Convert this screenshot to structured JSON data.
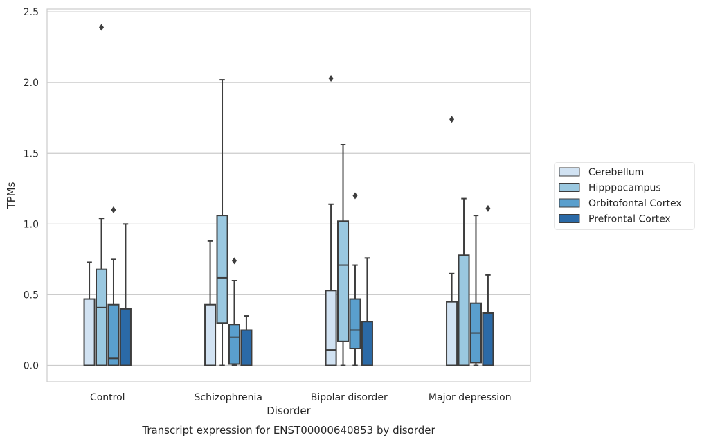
{
  "chart_data": {
    "type": "boxplot",
    "title": "Transcript expression for ENST00000640853 by disorder",
    "xlabel": "Disorder",
    "ylabel": "TPMs",
    "ylim": [
      -0.115,
      2.52
    ],
    "yticks": [
      "0.0",
      "0.5",
      "1.0",
      "1.5",
      "2.0",
      "2.5"
    ],
    "ytick_values": [
      0,
      0.5,
      1.0,
      1.5,
      2.0,
      2.5
    ],
    "grid": true,
    "legend_placement": "right",
    "categories": [
      "Control",
      "Schizophrenia",
      "Bipolar disorder",
      "Major depression"
    ],
    "series": [
      {
        "name": "Cerebellum",
        "color": "#d1e2f2",
        "boxes": [
          {
            "whislo": 0,
            "q1": 0,
            "med": 0,
            "q3": 0.47,
            "whishi": 0.73,
            "fliers": []
          },
          {
            "whislo": 0,
            "q1": 0,
            "med": 0,
            "q3": 0.43,
            "whishi": 0.88,
            "fliers": []
          },
          {
            "whislo": 0,
            "q1": 0,
            "med": 0.11,
            "q3": 0.53,
            "whishi": 1.14,
            "fliers": [
              2.03
            ]
          },
          {
            "whislo": 0,
            "q1": 0,
            "med": 0,
            "q3": 0.45,
            "whishi": 0.65,
            "fliers": [
              1.74
            ]
          }
        ]
      },
      {
        "name": "Hipppocampus",
        "color": "#9ac8e0",
        "boxes": [
          {
            "whislo": 0,
            "q1": 0,
            "med": 0.41,
            "q3": 0.68,
            "whishi": 1.04,
            "fliers": [
              2.39
            ]
          },
          {
            "whislo": 0,
            "q1": 0.3,
            "med": 0.62,
            "q3": 1.06,
            "whishi": 2.02,
            "fliers": []
          },
          {
            "whislo": 0,
            "q1": 0.17,
            "med": 0.71,
            "q3": 1.02,
            "whishi": 1.56,
            "fliers": []
          },
          {
            "whislo": 0,
            "q1": 0,
            "med": 0,
            "q3": 0.78,
            "whishi": 1.18,
            "fliers": []
          }
        ]
      },
      {
        "name": "Orbitofontal Cortex",
        "color": "#5a9fcd",
        "boxes": [
          {
            "whislo": 0,
            "q1": 0,
            "med": 0.05,
            "q3": 0.43,
            "whishi": 0.75,
            "fliers": [
              1.1
            ]
          },
          {
            "whislo": 0,
            "q1": 0.01,
            "med": 0.2,
            "q3": 0.29,
            "whishi": 0.6,
            "fliers": [
              0.74
            ]
          },
          {
            "whislo": 0,
            "q1": 0.12,
            "med": 0.25,
            "q3": 0.47,
            "whishi": 0.71,
            "fliers": [
              1.2
            ]
          },
          {
            "whislo": 0,
            "q1": 0.02,
            "med": 0.23,
            "q3": 0.44,
            "whishi": 1.06,
            "fliers": []
          }
        ]
      },
      {
        "name": "Prefrontal Cortex",
        "color": "#2b6aa7",
        "boxes": [
          {
            "whislo": 0,
            "q1": 0,
            "med": 0,
            "q3": 0.4,
            "whishi": 1.0,
            "fliers": []
          },
          {
            "whislo": 0,
            "q1": 0,
            "med": 0,
            "q3": 0.25,
            "whishi": 0.35,
            "fliers": []
          },
          {
            "whislo": 0,
            "q1": 0,
            "med": 0,
            "q3": 0.31,
            "whishi": 0.76,
            "fliers": []
          },
          {
            "whislo": 0,
            "q1": 0,
            "med": 0,
            "q3": 0.37,
            "whishi": 0.64,
            "fliers": [
              1.11
            ]
          }
        ]
      }
    ]
  }
}
